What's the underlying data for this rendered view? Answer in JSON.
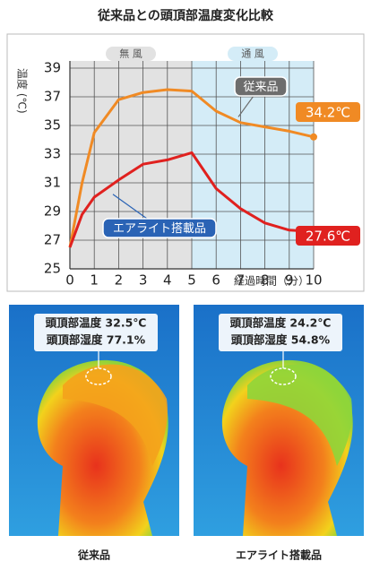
{
  "chart_data": {
    "type": "line",
    "title": "従来品との頭頂部温度変化比較",
    "ylabel": "温度 (℃)",
    "xlabel": "経過時間（分）",
    "regions": [
      {
        "label": "無 風",
        "from": 0,
        "to": 5,
        "color": "#e2e2e2"
      },
      {
        "label": "通 風",
        "from": 5,
        "to": 10,
        "color": "#d4ecf7"
      }
    ],
    "x": [
      0,
      0.5,
      1,
      2,
      3,
      4,
      5,
      6,
      7,
      8,
      9,
      10
    ],
    "series": [
      {
        "name": "従来品",
        "color": "#f08a24",
        "values": [
          26.5,
          31,
          34.5,
          36.8,
          37.3,
          37.5,
          37.4,
          36,
          35.2,
          34.9,
          34.6,
          34.2
        ],
        "value_labels": [
          null,
          null,
          null,
          null,
          null,
          null,
          null,
          null,
          null,
          null,
          null,
          "34.2℃"
        ]
      },
      {
        "name": "エアライト搭載品",
        "color": "#e0211f",
        "values": [
          26.5,
          28.8,
          30,
          31.2,
          32.3,
          32.6,
          33.1,
          30.6,
          29.2,
          28.2,
          27.7,
          27.6
        ],
        "value_labels": [
          null,
          null,
          null,
          null,
          null,
          null,
          null,
          null,
          null,
          null,
          null,
          "27.6℃"
        ]
      }
    ],
    "xlim": [
      0,
      10
    ],
    "xticks": [
      0,
      1,
      2,
      3,
      4,
      5,
      6,
      7,
      8,
      9,
      10
    ],
    "ylim": [
      25,
      39
    ],
    "yticks": [
      25,
      27,
      29,
      31,
      33,
      35,
      37,
      39
    ],
    "grid": true
  },
  "panels": [
    {
      "lines": [
        "頭頂部温度 32.5℃",
        "頭頂部湿度 77.1%"
      ],
      "caption": "従来品"
    },
    {
      "lines": [
        "頭頂部温度 24.2℃",
        "頭頂部湿度 54.8%"
      ],
      "caption": "エアライト搭載品"
    }
  ]
}
